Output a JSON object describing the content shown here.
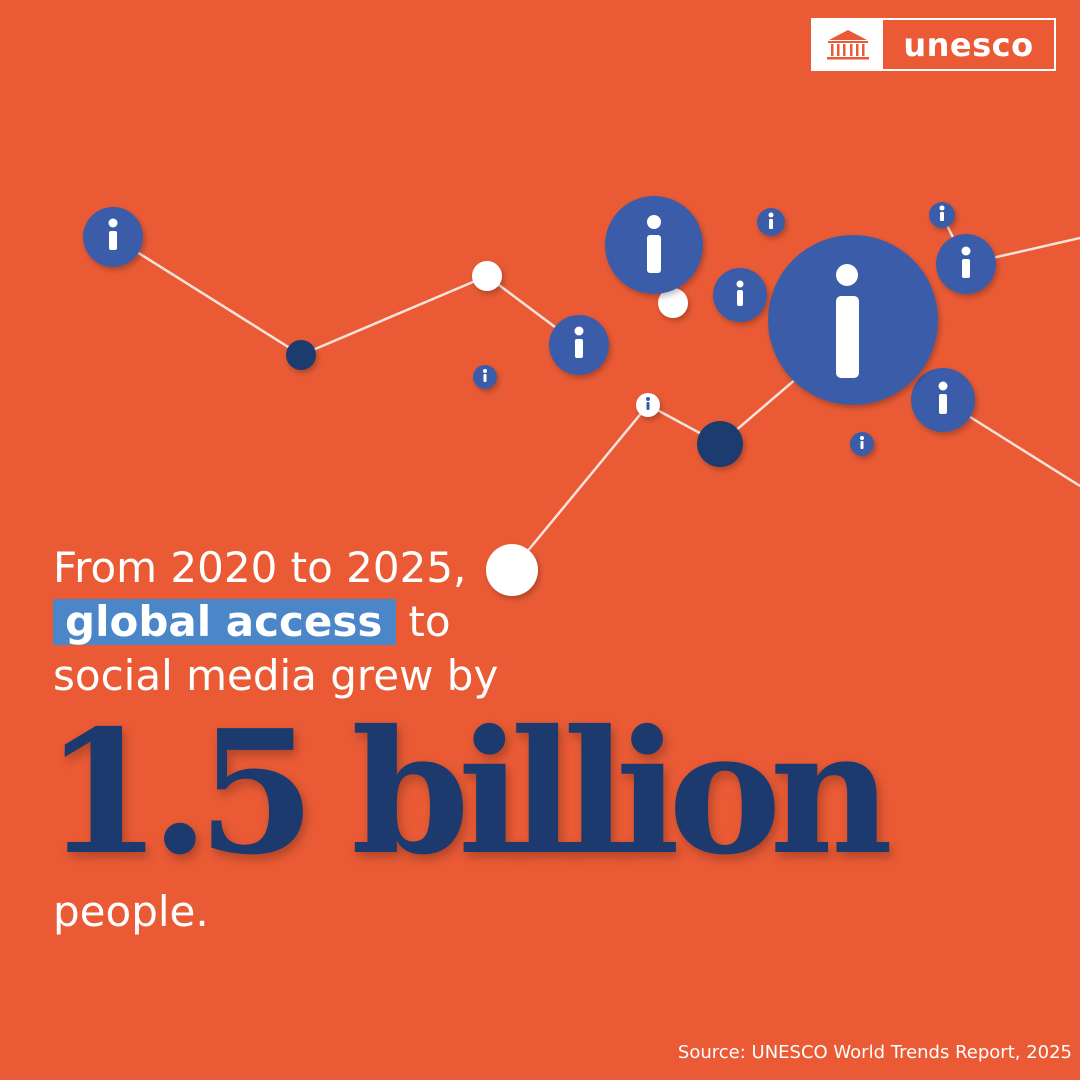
{
  "brand": {
    "name": "unesco",
    "icon": "temple-emblem-icon",
    "colors": {
      "background": "#EA5B35",
      "accent_blue": "#3A5BA9",
      "navy": "#1D3A6E",
      "highlight": "#4A86C8"
    }
  },
  "headline": {
    "line1": "From 2020 to 2025,",
    "highlight": "global access",
    "line2_rest": "to",
    "line3": "social media grew by",
    "big_number": "1.5 billion",
    "line5": "people."
  },
  "source": "Source: UNESCO World Trends Report, 2025",
  "decoration": {
    "icon": "info-icon",
    "description_icon_set": [
      "info-icon",
      "node-dot"
    ]
  }
}
